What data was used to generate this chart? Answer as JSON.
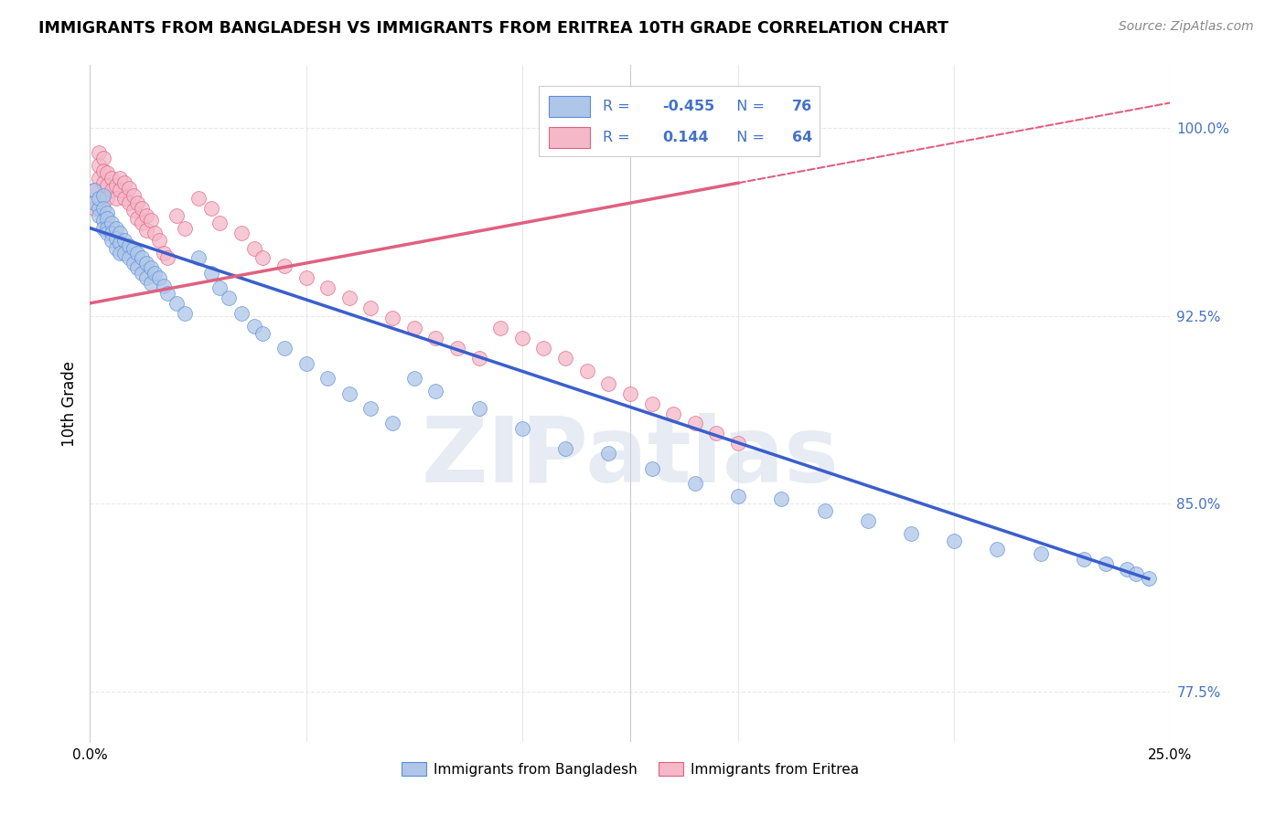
{
  "title": "IMMIGRANTS FROM BANGLADESH VS IMMIGRANTS FROM ERITREA 10TH GRADE CORRELATION CHART",
  "source": "Source: ZipAtlas.com",
  "ylabel": "10th Grade",
  "yticks": [
    0.775,
    0.85,
    0.925,
    1.0
  ],
  "ytick_labels": [
    "77.5%",
    "85.0%",
    "92.5%",
    "100.0%"
  ],
  "xlim": [
    0.0,
    0.25
  ],
  "ylim": [
    0.755,
    1.025
  ],
  "watermark": "ZIPatlas",
  "legend_blue_label": "Immigrants from Bangladesh",
  "legend_pink_label": "Immigrants from Eritrea",
  "R_blue": -0.455,
  "N_blue": 76,
  "R_pink": 0.144,
  "N_pink": 64,
  "blue_dot_color": "#aec6e8",
  "pink_dot_color": "#f4b8c8",
  "blue_edge_color": "#5b8dd9",
  "pink_edge_color": "#e06080",
  "blue_line_color": "#3a5fcd",
  "pink_line_color": "#e06080",
  "background_color": "#ffffff",
  "grid_color": "#e8e8e8",
  "text_blue": "#4472c4",
  "bangladesh_x": [
    0.001,
    0.001,
    0.002,
    0.002,
    0.002,
    0.003,
    0.003,
    0.003,
    0.003,
    0.004,
    0.004,
    0.004,
    0.004,
    0.005,
    0.005,
    0.005,
    0.006,
    0.006,
    0.006,
    0.007,
    0.007,
    0.007,
    0.008,
    0.008,
    0.009,
    0.009,
    0.01,
    0.01,
    0.011,
    0.011,
    0.012,
    0.012,
    0.013,
    0.013,
    0.014,
    0.014,
    0.015,
    0.016,
    0.017,
    0.018,
    0.02,
    0.022,
    0.025,
    0.028,
    0.03,
    0.032,
    0.035,
    0.038,
    0.04,
    0.045,
    0.05,
    0.055,
    0.06,
    0.065,
    0.07,
    0.075,
    0.08,
    0.09,
    0.1,
    0.11,
    0.12,
    0.13,
    0.14,
    0.15,
    0.16,
    0.17,
    0.18,
    0.19,
    0.2,
    0.21,
    0.22,
    0.23,
    0.235,
    0.24,
    0.242,
    0.245
  ],
  "bangladesh_y": [
    0.975,
    0.97,
    0.968,
    0.972,
    0.965,
    0.973,
    0.968,
    0.963,
    0.96,
    0.966,
    0.964,
    0.96,
    0.958,
    0.962,
    0.958,
    0.955,
    0.96,
    0.956,
    0.952,
    0.958,
    0.954,
    0.95,
    0.955,
    0.95,
    0.953,
    0.948,
    0.952,
    0.946,
    0.95,
    0.944,
    0.948,
    0.942,
    0.946,
    0.94,
    0.944,
    0.938,
    0.942,
    0.94,
    0.937,
    0.934,
    0.93,
    0.926,
    0.948,
    0.942,
    0.936,
    0.932,
    0.926,
    0.921,
    0.918,
    0.912,
    0.906,
    0.9,
    0.894,
    0.888,
    0.882,
    0.9,
    0.895,
    0.888,
    0.88,
    0.872,
    0.87,
    0.864,
    0.858,
    0.853,
    0.852,
    0.847,
    0.843,
    0.838,
    0.835,
    0.832,
    0.83,
    0.828,
    0.826,
    0.824,
    0.822,
    0.82
  ],
  "eritrea_x": [
    0.001,
    0.001,
    0.002,
    0.002,
    0.002,
    0.003,
    0.003,
    0.003,
    0.004,
    0.004,
    0.004,
    0.005,
    0.005,
    0.006,
    0.006,
    0.007,
    0.007,
    0.008,
    0.008,
    0.009,
    0.009,
    0.01,
    0.01,
    0.011,
    0.011,
    0.012,
    0.012,
    0.013,
    0.013,
    0.014,
    0.015,
    0.016,
    0.017,
    0.018,
    0.02,
    0.022,
    0.025,
    0.028,
    0.03,
    0.035,
    0.038,
    0.04,
    0.045,
    0.05,
    0.055,
    0.06,
    0.065,
    0.07,
    0.075,
    0.08,
    0.085,
    0.09,
    0.095,
    0.1,
    0.105,
    0.11,
    0.115,
    0.12,
    0.125,
    0.13,
    0.135,
    0.14,
    0.145,
    0.15
  ],
  "eritrea_y": [
    0.975,
    0.968,
    0.99,
    0.985,
    0.98,
    0.988,
    0.983,
    0.978,
    0.982,
    0.977,
    0.972,
    0.98,
    0.975,
    0.977,
    0.972,
    0.98,
    0.975,
    0.978,
    0.972,
    0.976,
    0.97,
    0.973,
    0.967,
    0.97,
    0.964,
    0.968,
    0.962,
    0.965,
    0.959,
    0.963,
    0.958,
    0.955,
    0.95,
    0.948,
    0.965,
    0.96,
    0.972,
    0.968,
    0.962,
    0.958,
    0.952,
    0.948,
    0.945,
    0.94,
    0.936,
    0.932,
    0.928,
    0.924,
    0.92,
    0.916,
    0.912,
    0.908,
    0.92,
    0.916,
    0.912,
    0.908,
    0.903,
    0.898,
    0.894,
    0.89,
    0.886,
    0.882,
    0.878,
    0.874
  ],
  "blue_line_x0": 0.0,
  "blue_line_y0": 0.96,
  "blue_line_x1": 0.245,
  "blue_line_y1": 0.82,
  "pink_line_x0": 0.0,
  "pink_line_y0": 0.93,
  "pink_line_x1": 0.25,
  "pink_line_y1": 1.01
}
